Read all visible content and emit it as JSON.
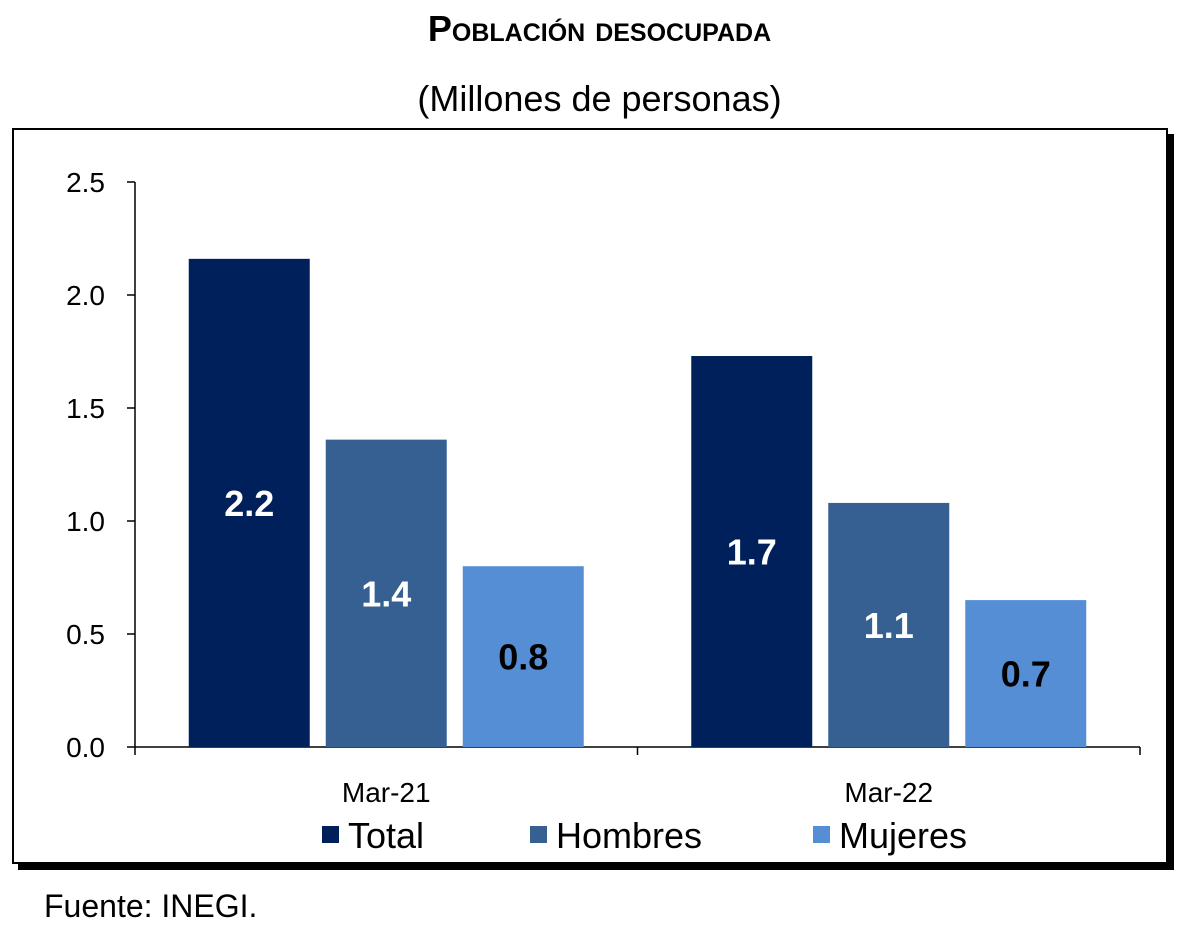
{
  "chart_data": {
    "type": "bar",
    "title": "Población desocupada",
    "subtitle": "(Millones de personas)",
    "categories": [
      "Mar-21",
      "Mar-22"
    ],
    "series": [
      {
        "name": "Total",
        "values": [
          2.16,
          1.73
        ],
        "labels": [
          "2.2",
          "1.7"
        ],
        "color": "#00205b",
        "label_color": "#ffffff"
      },
      {
        "name": "Hombres",
        "values": [
          1.36,
          1.08
        ],
        "labels": [
          "1.4",
          "1.1"
        ],
        "color": "#366092",
        "label_color": "#ffffff"
      },
      {
        "name": "Mujeres",
        "values": [
          0.8,
          0.65
        ],
        "labels": [
          "0.8",
          "0.7"
        ],
        "color": "#558ed5",
        "label_color": "#000000"
      }
    ],
    "ylim": [
      0,
      2.5
    ],
    "yticks": [
      "0.0",
      "0.5",
      "1.0",
      "1.5",
      "2.0",
      "2.5"
    ],
    "grid": false,
    "legend": "bottom",
    "xlabel": "",
    "ylabel": ""
  },
  "source": "Fuente: INEGI."
}
